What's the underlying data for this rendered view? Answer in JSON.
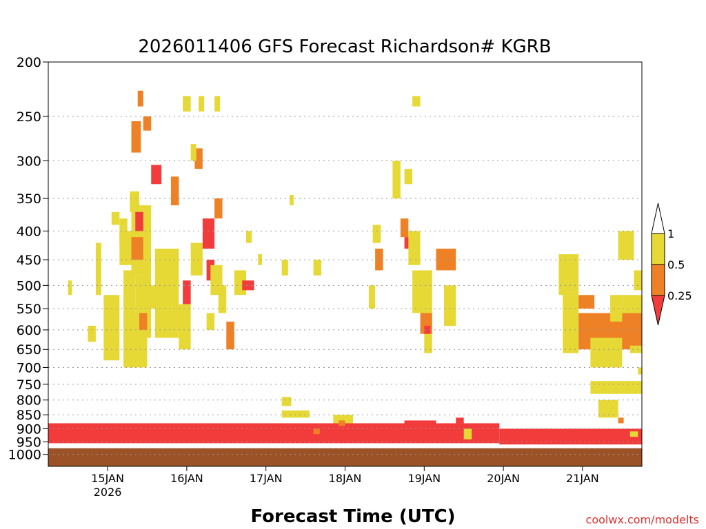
{
  "chart_data": {
    "type": "heatmap",
    "title": "2026011406 GFS Forecast Richardson# KGRB",
    "xlabel": "Forecast Time (UTC)",
    "ylabel": "",
    "credit": "coolwx.com/modelts",
    "x_ticks": [
      {
        "t": 15,
        "label": "15JAN"
      },
      {
        "t": 16,
        "label": "16JAN"
      },
      {
        "t": 17,
        "label": "17JAN"
      },
      {
        "t": 18,
        "label": "18JAN"
      },
      {
        "t": 19,
        "label": "19JAN"
      },
      {
        "t": 20,
        "label": "20JAN"
      },
      {
        "t": 21,
        "label": "21JAN"
      }
    ],
    "x_sublabel": {
      "t": 15,
      "label": "2026"
    },
    "xlim": [
      14.25,
      21.75
    ],
    "ylim": [
      1050,
      200
    ],
    "y_scale": "log-pressure",
    "y_ticks": [
      "200",
      "250",
      "300",
      "350",
      "400",
      "450",
      "500",
      "550",
      "600",
      "650",
      "700",
      "750",
      "800",
      "850",
      "900",
      "950",
      "1000"
    ],
    "grid": "dotted horizontal at pressure ticks",
    "legend": {
      "placement": "right",
      "levels": [
        "1",
        "0.5",
        "0.25"
      ],
      "bands": [
        {
          "range": "0.5-1",
          "color": "#e6d936"
        },
        {
          "range": "0.25-0.5",
          "color": "#ee8126"
        },
        {
          "range": "<0.25",
          "color": "#f23c3c"
        }
      ]
    },
    "colors": {
      "low": "#f23c3c",
      "mid": "#ee8126",
      "high": "#e6d936",
      "ground": "#9c5227"
    },
    "regions": [
      {
        "x": [
          14.25,
          19.95
        ],
        "p": [
          955,
          880
        ],
        "class": "low"
      },
      {
        "x": [
          19.95,
          21.75
        ],
        "p": [
          960,
          900
        ],
        "class": "low"
      },
      {
        "x": [
          14.25,
          21.75
        ],
        "p": [
          1050,
          975
        ],
        "class": "ground"
      },
      {
        "x": [
          14.5,
          14.55
        ],
        "p": [
          520,
          490
        ],
        "class": "high"
      },
      {
        "x": [
          14.85,
          14.92
        ],
        "p": [
          520,
          420
        ],
        "class": "high"
      },
      {
        "x": [
          14.95,
          15.15
        ],
        "p": [
          680,
          520
        ],
        "class": "high"
      },
      {
        "x": [
          15.05,
          15.15
        ],
        "p": [
          390,
          370
        ],
        "class": "high"
      },
      {
        "x": [
          14.75,
          14.85
        ],
        "p": [
          630,
          590
        ],
        "class": "high"
      },
      {
        "x": [
          15.15,
          15.25
        ],
        "p": [
          420,
          380
        ],
        "class": "high"
      },
      {
        "x": [
          15.15,
          15.3
        ],
        "p": [
          460,
          400
        ],
        "class": "high"
      },
      {
        "x": [
          15.2,
          15.35
        ],
        "p": [
          560,
          470
        ],
        "class": "high"
      },
      {
        "x": [
          15.2,
          15.5
        ],
        "p": [
          700,
          560
        ],
        "class": "high"
      },
      {
        "x": [
          15.3,
          15.55
        ],
        "p": [
          480,
          360
        ],
        "class": "high"
      },
      {
        "x": [
          15.35,
          15.55
        ],
        "p": [
          620,
          480
        ],
        "class": "high"
      },
      {
        "x": [
          15.3,
          15.42
        ],
        "p": [
          290,
          255
        ],
        "class": "mid"
      },
      {
        "x": [
          15.28,
          15.4
        ],
        "p": [
          370,
          340
        ],
        "class": "high"
      },
      {
        "x": [
          15.38,
          15.45
        ],
        "p": [
          240,
          225
        ],
        "class": "mid"
      },
      {
        "x": [
          15.45,
          15.55
        ],
        "p": [
          265,
          250
        ],
        "class": "mid"
      },
      {
        "x": [
          15.35,
          15.45
        ],
        "p": [
          400,
          370
        ],
        "class": "low"
      },
      {
        "x": [
          15.3,
          15.45
        ],
        "p": [
          450,
          410
        ],
        "class": "mid"
      },
      {
        "x": [
          15.4,
          15.5
        ],
        "p": [
          600,
          560
        ],
        "class": "mid"
      },
      {
        "x": [
          15.5,
          15.6
        ],
        "p": [
          550,
          500
        ],
        "class": "high"
      },
      {
        "x": [
          15.55,
          15.68
        ],
        "p": [
          330,
          305
        ],
        "class": "low"
      },
      {
        "x": [
          15.6,
          15.9
        ],
        "p": [
          620,
          430
        ],
        "class": "high"
      },
      {
        "x": [
          15.7,
          15.85
        ],
        "p": [
          500,
          470
        ],
        "class": "high"
      },
      {
        "x": [
          15.8,
          15.9
        ],
        "p": [
          360,
          320
        ],
        "class": "mid"
      },
      {
        "x": [
          15.95,
          16.05
        ],
        "p": [
          540,
          490
        ],
        "class": "low"
      },
      {
        "x": [
          15.9,
          16.05
        ],
        "p": [
          650,
          540
        ],
        "class": "high"
      },
      {
        "x": [
          16.05,
          16.2
        ],
        "p": [
          480,
          420
        ],
        "class": "high"
      },
      {
        "x": [
          16.1,
          16.2
        ],
        "p": [
          310,
          285
        ],
        "class": "mid"
      },
      {
        "x": [
          16.2,
          16.35
        ],
        "p": [
          430,
          380
        ],
        "class": "low"
      },
      {
        "x": [
          16.25,
          16.35
        ],
        "p": [
          490,
          450
        ],
        "class": "low"
      },
      {
        "x": [
          16.3,
          16.45
        ],
        "p": [
          520,
          460
        ],
        "class": "high"
      },
      {
        "x": [
          16.35,
          16.45
        ],
        "p": [
          380,
          350
        ],
        "class": "mid"
      },
      {
        "x": [
          16.25,
          16.35
        ],
        "p": [
          600,
          560
        ],
        "class": "high"
      },
      {
        "x": [
          16.4,
          16.5
        ],
        "p": [
          560,
          500
        ],
        "class": "high"
      },
      {
        "x": [
          16.5,
          16.6
        ],
        "p": [
          650,
          580
        ],
        "class": "mid"
      },
      {
        "x": [
          15.95,
          16.05
        ],
        "p": [
          245,
          230
        ],
        "class": "high"
      },
      {
        "x": [
          16.15,
          16.22
        ],
        "p": [
          245,
          230
        ],
        "class": "high"
      },
      {
        "x": [
          16.35,
          16.42
        ],
        "p": [
          245,
          230
        ],
        "class": "high"
      },
      {
        "x": [
          16.05,
          16.12
        ],
        "p": [
          300,
          280
        ],
        "class": "high"
      },
      {
        "x": [
          16.6,
          16.75
        ],
        "p": [
          520,
          470
        ],
        "class": "high"
      },
      {
        "x": [
          16.7,
          16.85
        ],
        "p": [
          510,
          490
        ],
        "class": "low"
      },
      {
        "x": [
          16.75,
          16.82
        ],
        "p": [
          420,
          400
        ],
        "class": "high"
      },
      {
        "x": [
          16.9,
          16.95
        ],
        "p": [
          460,
          440
        ],
        "class": "high"
      },
      {
        "x": [
          17.2,
          17.28
        ],
        "p": [
          480,
          450
        ],
        "class": "high"
      },
      {
        "x": [
          17.3,
          17.35
        ],
        "p": [
          360,
          345
        ],
        "class": "high"
      },
      {
        "x": [
          17.2,
          17.32
        ],
        "p": [
          820,
          790
        ],
        "class": "high"
      },
      {
        "x": [
          17.2,
          17.55
        ],
        "p": [
          860,
          835
        ],
        "class": "high"
      },
      {
        "x": [
          17.6,
          17.7
        ],
        "p": [
          480,
          450
        ],
        "class": "high"
      },
      {
        "x": [
          17.6,
          17.68
        ],
        "p": [
          920,
          900
        ],
        "class": "mid"
      },
      {
        "x": [
          17.85,
          18.1
        ],
        "p": [
          880,
          850
        ],
        "class": "high"
      },
      {
        "x": [
          17.92,
          18.0
        ],
        "p": [
          890,
          870
        ],
        "class": "mid"
      },
      {
        "x": [
          18.3,
          18.38
        ],
        "p": [
          550,
          500
        ],
        "class": "high"
      },
      {
        "x": [
          18.35,
          18.45
        ],
        "p": [
          420,
          390
        ],
        "class": "high"
      },
      {
        "x": [
          18.38,
          18.48
        ],
        "p": [
          470,
          430
        ],
        "class": "mid"
      },
      {
        "x": [
          18.6,
          18.7
        ],
        "p": [
          350,
          300
        ],
        "class": "high"
      },
      {
        "x": [
          18.7,
          18.8
        ],
        "p": [
          410,
          380
        ],
        "class": "mid"
      },
      {
        "x": [
          18.75,
          18.85
        ],
        "p": [
          330,
          310
        ],
        "class": "high"
      },
      {
        "x": [
          18.75,
          18.82
        ],
        "p": [
          430,
          410
        ],
        "class": "low"
      },
      {
        "x": [
          18.8,
          18.95
        ],
        "p": [
          460,
          400
        ],
        "class": "high"
      },
      {
        "x": [
          18.85,
          18.95
        ],
        "p": [
          240,
          230
        ],
        "class": "high"
      },
      {
        "x": [
          18.85,
          19.1
        ],
        "p": [
          560,
          470
        ],
        "class": "high"
      },
      {
        "x": [
          18.95,
          19.1
        ],
        "p": [
          610,
          560
        ],
        "class": "mid"
      },
      {
        "x": [
          19.0,
          19.1
        ],
        "p": [
          660,
          610
        ],
        "class": "high"
      },
      {
        "x": [
          19.0,
          19.08
        ],
        "p": [
          610,
          590
        ],
        "class": "low"
      },
      {
        "x": [
          19.15,
          19.4
        ],
        "p": [
          470,
          430
        ],
        "class": "mid"
      },
      {
        "x": [
          19.25,
          19.4
        ],
        "p": [
          590,
          500
        ],
        "class": "high"
      },
      {
        "x": [
          18.75,
          19.15
        ],
        "p": [
          900,
          870
        ],
        "class": "low"
      },
      {
        "x": [
          19.4,
          19.5
        ],
        "p": [
          880,
          860
        ],
        "class": "low"
      },
      {
        "x": [
          19.5,
          19.6
        ],
        "p": [
          940,
          900
        ],
        "class": "high"
      },
      {
        "x": [
          20.7,
          20.95
        ],
        "p": [
          520,
          440
        ],
        "class": "high"
      },
      {
        "x": [
          20.75,
          20.95
        ],
        "p": [
          660,
          520
        ],
        "class": "high"
      },
      {
        "x": [
          20.95,
          21.15
        ],
        "p": [
          550,
          520
        ],
        "class": "mid"
      },
      {
        "x": [
          20.95,
          21.75
        ],
        "p": [
          650,
          560
        ],
        "class": "mid"
      },
      {
        "x": [
          21.1,
          21.5
        ],
        "p": [
          700,
          620
        ],
        "class": "high"
      },
      {
        "x": [
          21.35,
          21.5
        ],
        "p": [
          580,
          520
        ],
        "class": "high"
      },
      {
        "x": [
          21.5,
          21.75
        ],
        "p": [
          560,
          520
        ],
        "class": "high"
      },
      {
        "x": [
          21.6,
          21.75
        ],
        "p": [
          660,
          640
        ],
        "class": "high"
      },
      {
        "x": [
          21.7,
          21.75
        ],
        "p": [
          720,
          700
        ],
        "class": "high"
      },
      {
        "x": [
          21.45,
          21.65
        ],
        "p": [
          450,
          400
        ],
        "class": "high"
      },
      {
        "x": [
          21.65,
          21.75
        ],
        "p": [
          510,
          470
        ],
        "class": "high"
      },
      {
        "x": [
          21.1,
          21.75
        ],
        "p": [
          780,
          740
        ],
        "class": "high"
      },
      {
        "x": [
          21.2,
          21.45
        ],
        "p": [
          860,
          800
        ],
        "class": "high"
      },
      {
        "x": [
          21.45,
          21.52
        ],
        "p": [
          880,
          860
        ],
        "class": "mid"
      },
      {
        "x": [
          21.6,
          21.7
        ],
        "p": [
          930,
          910
        ],
        "class": "high"
      }
    ]
  }
}
